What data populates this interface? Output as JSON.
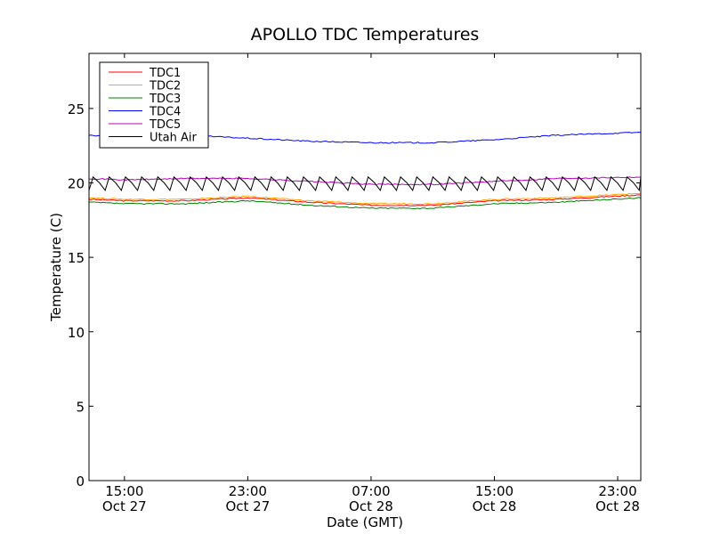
{
  "chart_data": {
    "type": "line",
    "title": "APOLLO TDC Temperatures",
    "xlabel": "Date (GMT)",
    "ylabel": "Temperature (C)",
    "ylim": [
      0,
      28.7
    ],
    "xlim_hours": [
      -2.3,
      33.5
    ],
    "grid": false,
    "legend_position": "top-left",
    "y_ticks": [
      0,
      5,
      10,
      15,
      20,
      25
    ],
    "x_ticks": [
      {
        "hour": 0,
        "time": "15:00",
        "date": "Oct 27"
      },
      {
        "hour": 8,
        "time": "23:00",
        "date": "Oct 27"
      },
      {
        "hour": 16,
        "time": "07:00",
        "date": "Oct 28"
      },
      {
        "hour": 24,
        "time": "15:00",
        "date": "Oct 28"
      },
      {
        "hour": 32,
        "time": "23:00",
        "date": "Oct 28"
      }
    ],
    "x_unit_note": "hours relative to 15:00 Oct 27 GMT",
    "series": [
      {
        "name": "TDC1",
        "color": "#ff0000",
        "x": [
          -2.3,
          0,
          4,
          8,
          12,
          16,
          20,
          24,
          28,
          33.5
        ],
        "y": [
          18.9,
          18.8,
          18.8,
          19.0,
          18.7,
          18.5,
          18.5,
          18.8,
          18.9,
          19.2
        ]
      },
      {
        "name": "TDC2",
        "color": "#ffa500",
        "x": [
          -2.3,
          0,
          4,
          8,
          12,
          16,
          20,
          24,
          28,
          33.5
        ],
        "y": [
          19.0,
          18.9,
          18.9,
          19.1,
          18.8,
          18.6,
          18.6,
          18.9,
          19.0,
          19.3
        ]
      },
      {
        "name": "TDC3",
        "color": "#008000",
        "x": [
          -2.3,
          0,
          4,
          8,
          12,
          16,
          20,
          24,
          28,
          33.5
        ],
        "y": [
          18.7,
          18.6,
          18.6,
          18.8,
          18.5,
          18.3,
          18.3,
          18.6,
          18.7,
          19.0
        ]
      },
      {
        "name": "TDC4",
        "color": "#0000ff",
        "x": [
          -2.3,
          0,
          4,
          8,
          12,
          16,
          20,
          24,
          28,
          33.5
        ],
        "y": [
          23.2,
          23.0,
          23.2,
          23.0,
          22.8,
          22.7,
          22.7,
          22.9,
          23.2,
          23.4
        ]
      },
      {
        "name": "TDC5",
        "color": "#bf00bf",
        "x": [
          -2.3,
          0,
          4,
          8,
          12,
          16,
          20,
          24,
          28,
          33.5
        ],
        "y": [
          20.3,
          20.2,
          20.3,
          20.3,
          20.1,
          19.9,
          19.9,
          20.1,
          20.3,
          20.4
        ]
      },
      {
        "name": "Utah Air",
        "color": "#000000",
        "style": "sawtooth",
        "cycle_hours": 1.05,
        "low": 19.5,
        "high": 20.4,
        "x_start": -2.3,
        "x_end": 33.5
      }
    ]
  }
}
